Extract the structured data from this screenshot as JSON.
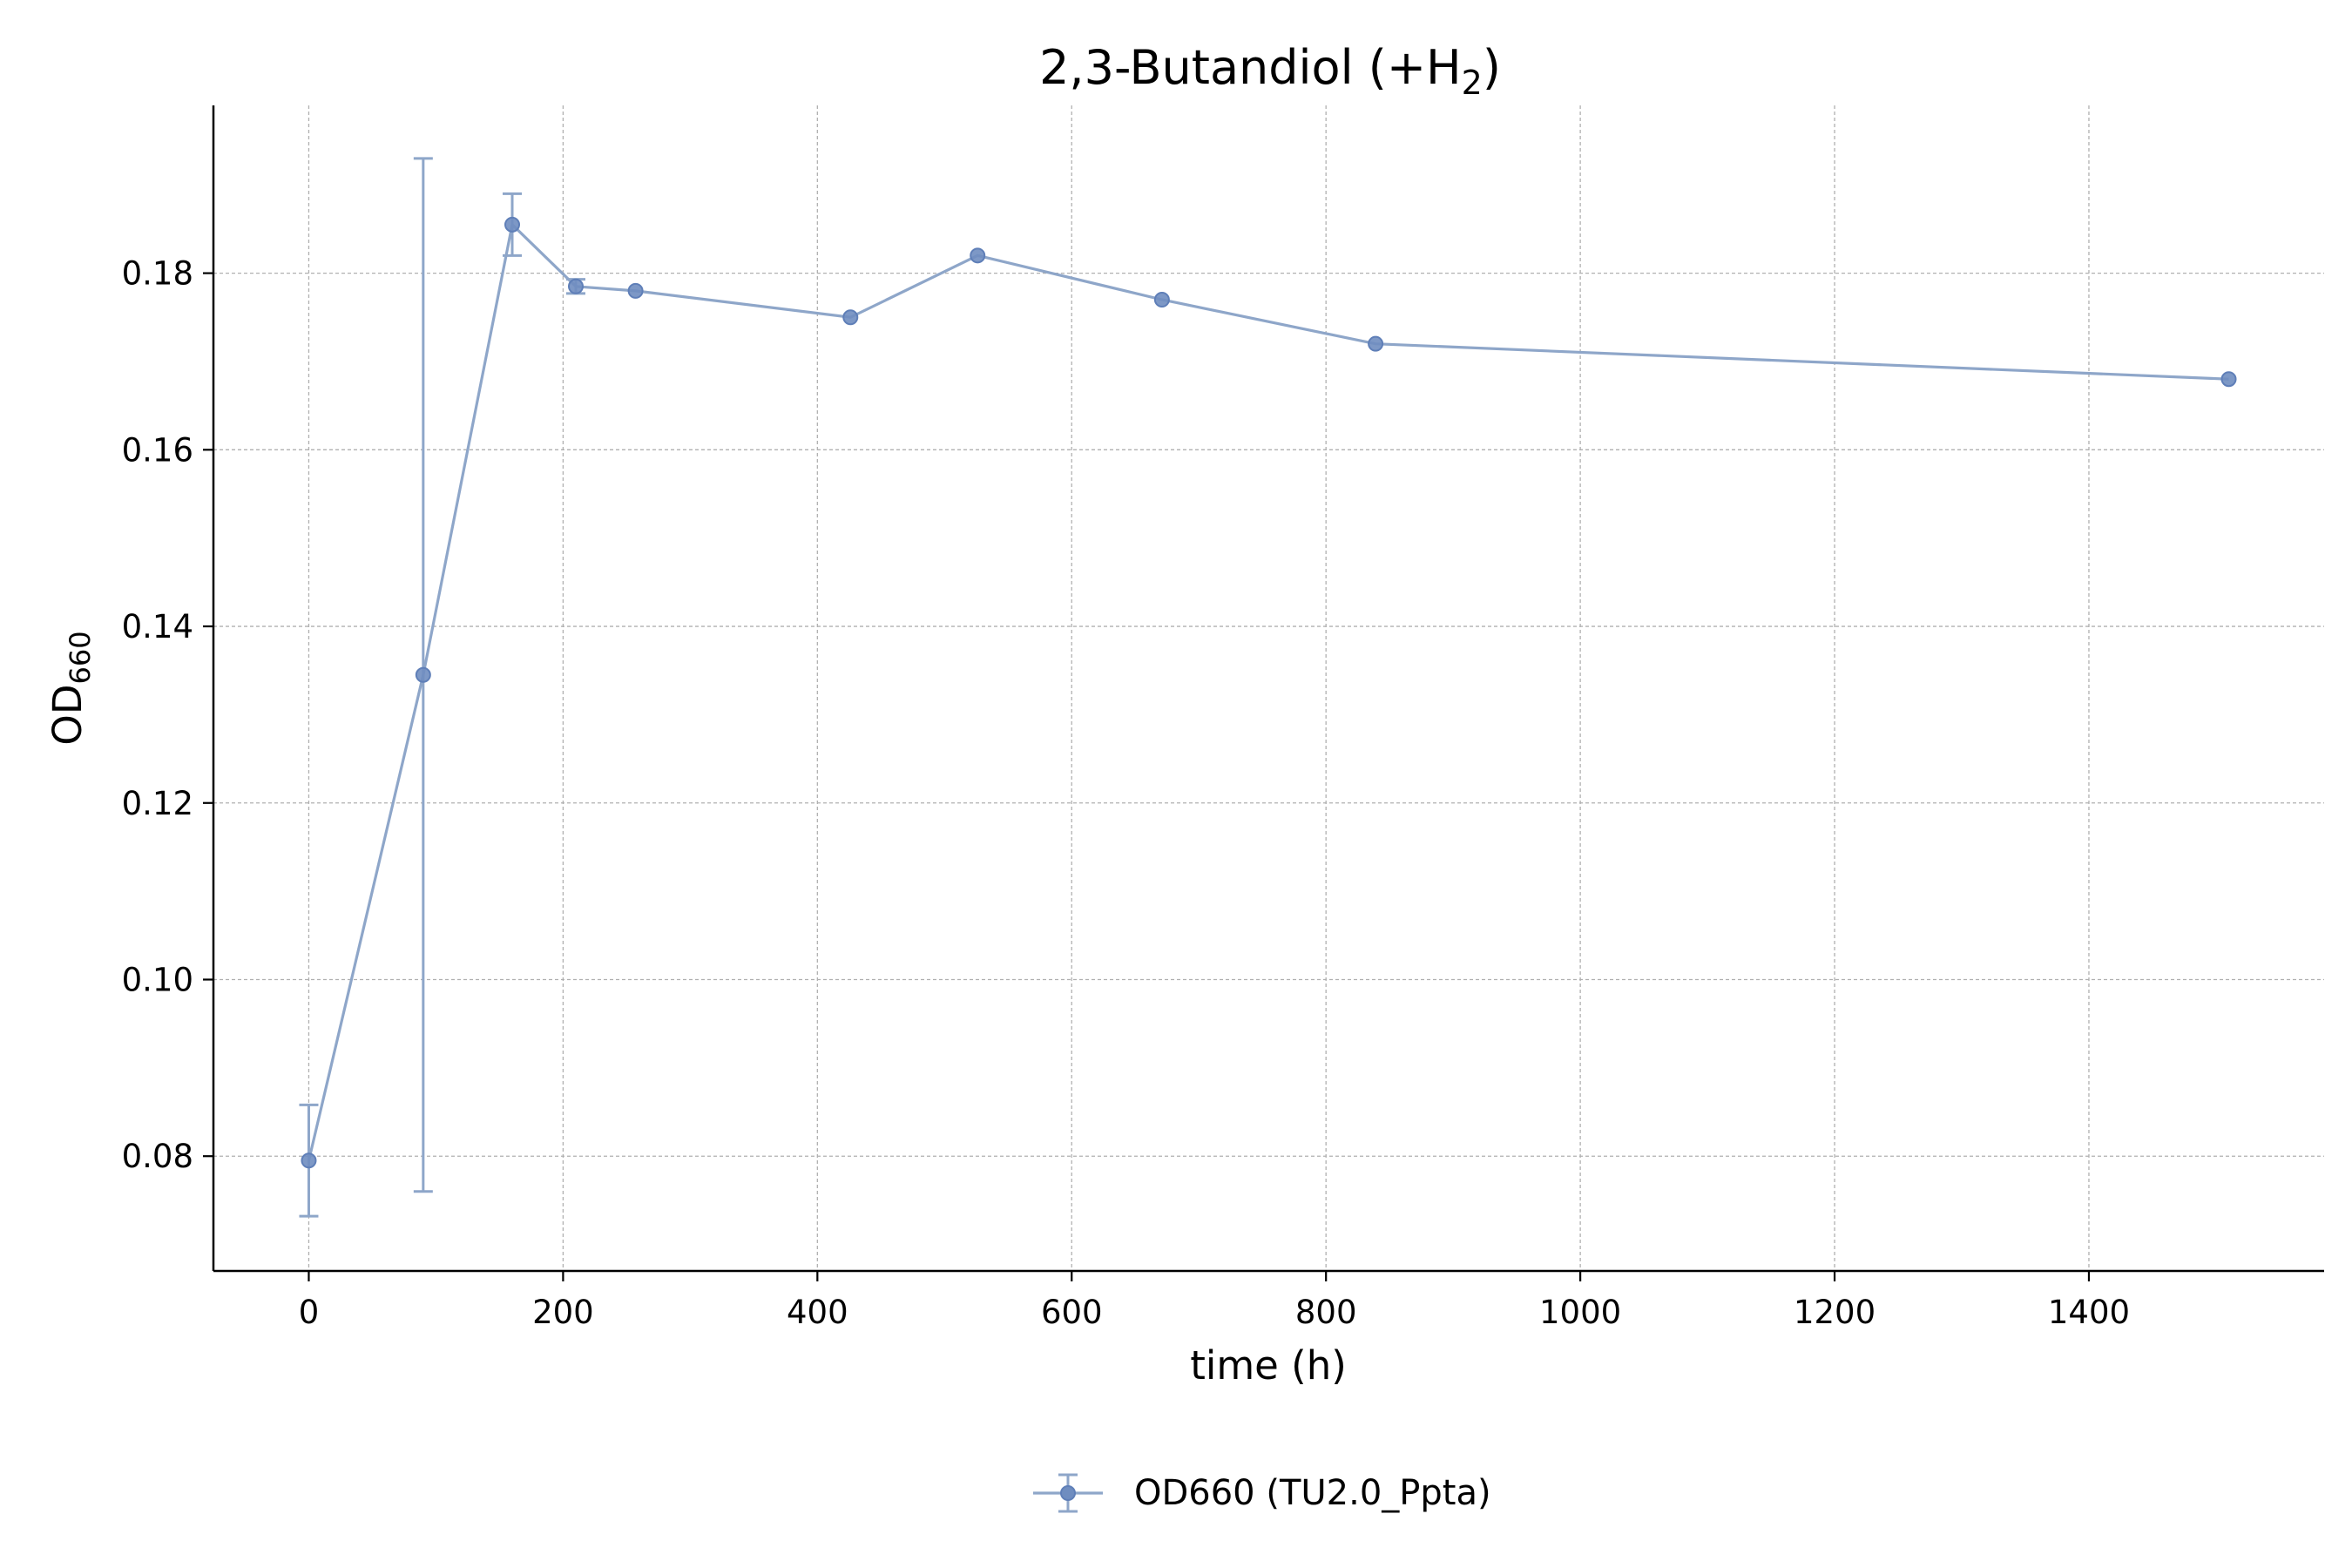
{
  "chart_data": {
    "type": "line",
    "title": {
      "main": "2,3-Butandiol (+H",
      "sub": "2",
      "end": ")"
    },
    "xlabel": "time (h)",
    "ylabel": {
      "main": "OD",
      "sub": "660"
    },
    "xlim": [
      -75,
      1585
    ],
    "ylim": [
      0.067,
      0.199
    ],
    "xticks": [
      0,
      200,
      400,
      600,
      800,
      1000,
      1200,
      1400
    ],
    "xtick_labels": [
      "0",
      "200",
      "400",
      "600",
      "800",
      "1000",
      "1200",
      "1400"
    ],
    "yticks": [
      0.08,
      0.1,
      0.12,
      0.14,
      0.16,
      0.18
    ],
    "ytick_labels": [
      "0.08",
      "0.10",
      "0.12",
      "0.14",
      "0.16",
      "0.18"
    ],
    "grid": true,
    "legend_position": "bottom-center",
    "color": "#8ea6c9",
    "marker_color": "#6f8dc0",
    "series": [
      {
        "name": "OD660 (TU2.0_Ppta)",
        "x": [
          0,
          90,
          160,
          210,
          257,
          426,
          526,
          671,
          839,
          1510
        ],
        "y": [
          0.0795,
          0.1345,
          0.1855,
          0.1785,
          0.178,
          0.175,
          0.182,
          0.177,
          0.172,
          0.168
        ],
        "err": [
          0.0063,
          0.0585,
          0.0035,
          0.0008,
          0,
          0,
          0,
          0,
          0,
          0
        ]
      }
    ]
  }
}
